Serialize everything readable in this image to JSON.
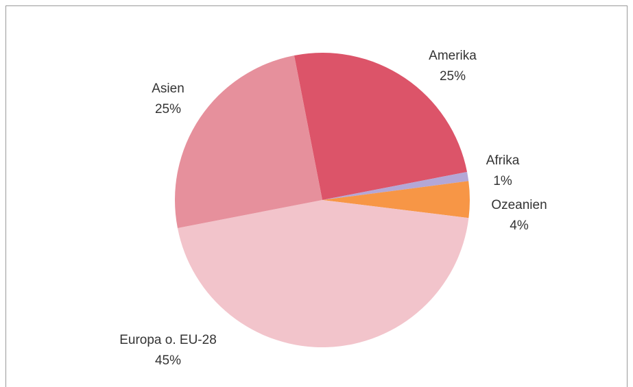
{
  "chart_data": {
    "type": "pie",
    "categories": [
      "Amerika",
      "Afrika",
      "Ozeanien",
      "Europa o. EU-28",
      "Asien"
    ],
    "values": [
      25,
      1,
      4,
      45,
      25
    ],
    "value_labels": [
      "25%",
      "1%",
      "4%",
      "45%",
      "25%"
    ],
    "colors": [
      "#dc5469",
      "#b4a7d6",
      "#f79646",
      "#f2c4cb",
      "#e6909c"
    ]
  }
}
